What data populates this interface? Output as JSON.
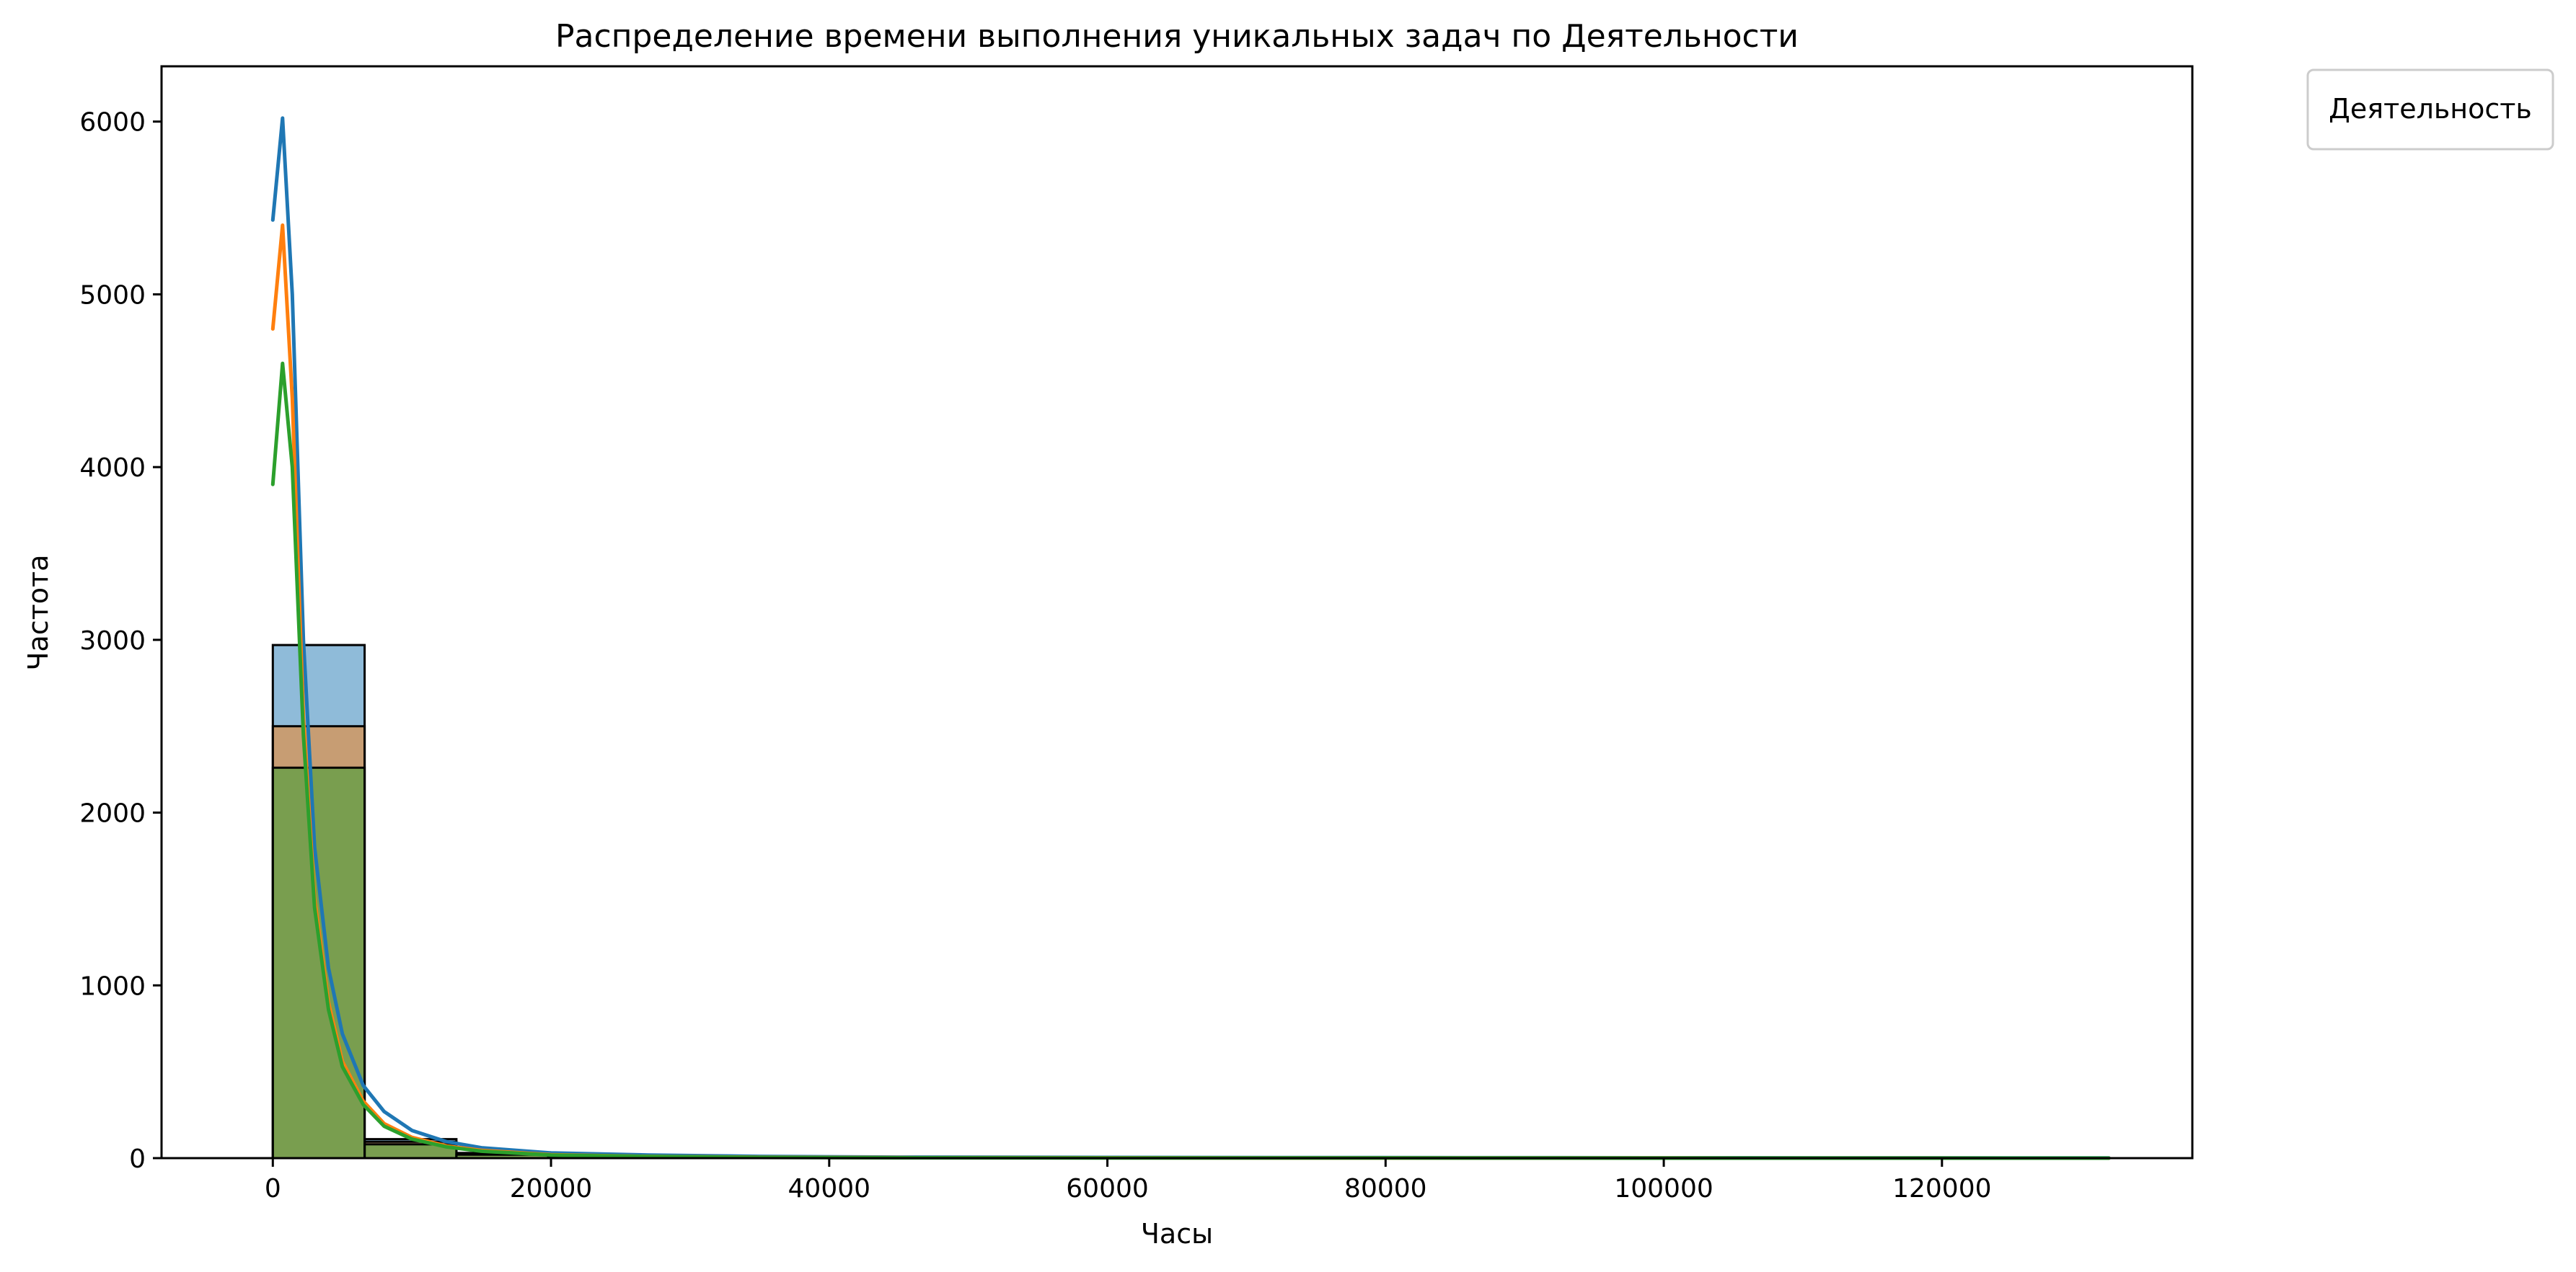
{
  "chart_data": {
    "type": "bar",
    "title": "Распределение времени выполнения уникальных задач по Деятельности",
    "xlabel": "Часы",
    "ylabel": "Частота",
    "xlim": [
      -8000,
      138000
    ],
    "ylim": [
      0,
      6320
    ],
    "grid": false,
    "legend": {
      "title": "Деятельность",
      "placement": "outside-top-right",
      "entries": []
    },
    "x_ticks": [
      0,
      20000,
      40000,
      60000,
      80000,
      100000,
      120000
    ],
    "x_tick_labels": [
      "0",
      "20000",
      "40000",
      "60000",
      "80000",
      "100000",
      "120000"
    ],
    "y_ticks": [
      0,
      1000,
      2000,
      3000,
      4000,
      5000,
      6000
    ],
    "y_tick_labels": [
      "0",
      "1000",
      "2000",
      "3000",
      "4000",
      "5000",
      "6000"
    ],
    "bin_edges": [
      0,
      6600,
      13200,
      19800,
      26400,
      33000,
      39600,
      46200,
      52800,
      59400,
      66000,
      72600,
      79200,
      85800,
      92400,
      99000,
      105600,
      112200,
      118800,
      125400,
      132000
    ],
    "series": [
      {
        "color": "#1f77b4",
        "values": [
          2970,
          110,
          30,
          12,
          8,
          5,
          3,
          2,
          2,
          1,
          1,
          1,
          1,
          0,
          1,
          0,
          0,
          0,
          0,
          1
        ],
        "kde": [
          [
            0,
            5430
          ],
          [
            700,
            6020
          ],
          [
            1400,
            5000
          ],
          [
            2200,
            3000
          ],
          [
            3000,
            1800
          ],
          [
            4000,
            1100
          ],
          [
            5000,
            720
          ],
          [
            6500,
            420
          ],
          [
            8000,
            270
          ],
          [
            10000,
            160
          ],
          [
            12500,
            95
          ],
          [
            15000,
            60
          ],
          [
            20000,
            30
          ],
          [
            27000,
            18
          ],
          [
            35000,
            10
          ],
          [
            45000,
            6
          ],
          [
            60000,
            4
          ],
          [
            80000,
            3
          ],
          [
            100000,
            2
          ],
          [
            132000,
            1
          ]
        ]
      },
      {
        "color": "#ff7f0e",
        "values": [
          2500,
          95,
          25,
          10,
          6,
          4,
          2,
          2,
          1,
          1,
          1,
          0,
          1,
          0,
          0,
          0,
          0,
          0,
          0,
          0
        ],
        "kde": [
          [
            0,
            4800
          ],
          [
            700,
            5400
          ],
          [
            1400,
            4400
          ],
          [
            2200,
            2550
          ],
          [
            3000,
            1500
          ],
          [
            4000,
            900
          ],
          [
            5000,
            560
          ],
          [
            6500,
            330
          ],
          [
            8000,
            200
          ],
          [
            10000,
            120
          ],
          [
            12500,
            70
          ],
          [
            15000,
            45
          ],
          [
            20000,
            20
          ],
          [
            27000,
            10
          ],
          [
            35000,
            5
          ],
          [
            45000,
            3
          ],
          [
            60000,
            2
          ],
          [
            80000,
            1
          ],
          [
            100000,
            1
          ],
          [
            132000,
            0
          ]
        ]
      },
      {
        "color": "#2ca02c",
        "values": [
          2260,
          80,
          20,
          8,
          5,
          3,
          2,
          1,
          1,
          1,
          0,
          0,
          0,
          0,
          0,
          0,
          0,
          0,
          0,
          0
        ],
        "kde": [
          [
            0,
            3900
          ],
          [
            700,
            4600
          ],
          [
            1400,
            4000
          ],
          [
            2200,
            2450
          ],
          [
            3000,
            1450
          ],
          [
            4000,
            860
          ],
          [
            5000,
            530
          ],
          [
            6500,
            310
          ],
          [
            8000,
            185
          ],
          [
            10000,
            110
          ],
          [
            12500,
            65
          ],
          [
            15000,
            40
          ],
          [
            20000,
            18
          ],
          [
            27000,
            9
          ],
          [
            35000,
            4
          ],
          [
            45000,
            2
          ],
          [
            60000,
            1
          ],
          [
            80000,
            1
          ],
          [
            100000,
            0
          ],
          [
            132000,
            0
          ]
        ]
      }
    ]
  }
}
